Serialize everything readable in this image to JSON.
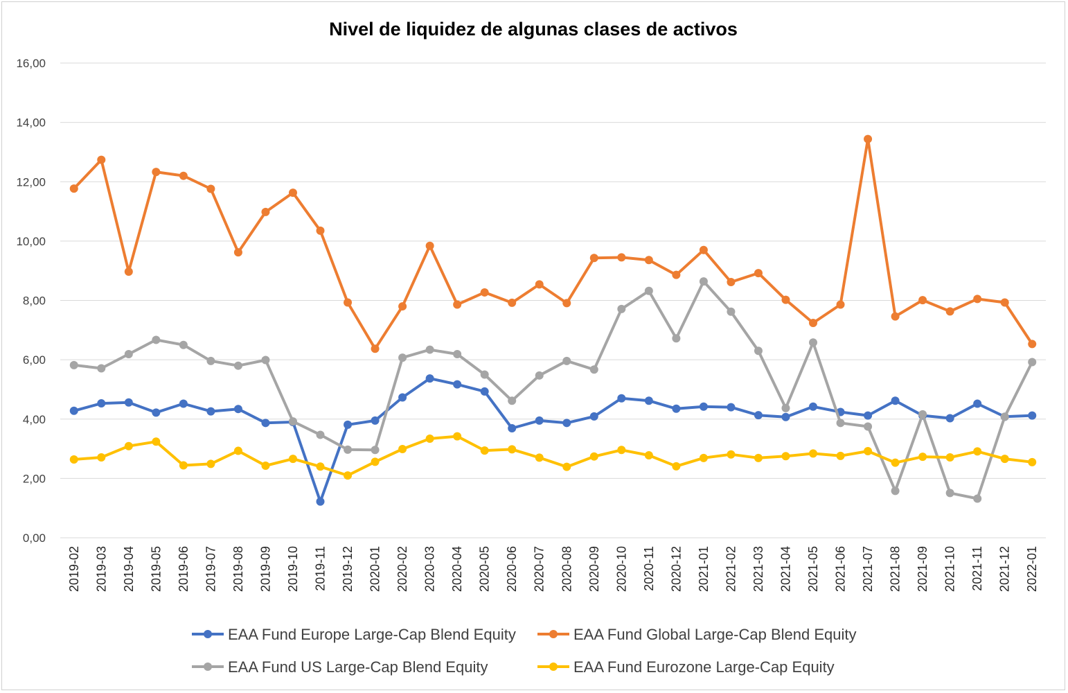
{
  "chart_data": {
    "type": "line",
    "title": "Nivel de liquidez de algunas clases de activos",
    "xlabel": "",
    "ylabel": "",
    "ylim": [
      0,
      16
    ],
    "yticks": [
      0,
      2,
      4,
      6,
      8,
      10,
      12,
      14,
      16
    ],
    "ytick_labels": [
      "0,00",
      "2,00",
      "4,00",
      "6,00",
      "8,00",
      "10,00",
      "12,00",
      "14,00",
      "16,00"
    ],
    "grid": true,
    "legend_position": "bottom",
    "categories": [
      "2019-02",
      "2019-03",
      "2019-04",
      "2019-05",
      "2019-06",
      "2019-07",
      "2019-08",
      "2019-09",
      "2019-10",
      "2019-11",
      "2019-12",
      "2020-01",
      "2020-02",
      "2020-03",
      "2020-04",
      "2020-05",
      "2020-06",
      "2020-07",
      "2020-08",
      "2020-09",
      "2020-10",
      "2020-11",
      "2020-12",
      "2021-01",
      "2021-02",
      "2021-03",
      "2021-04",
      "2021-05",
      "2021-06",
      "2021-07",
      "2021-08",
      "2021-09",
      "2021-10",
      "2021-11",
      "2021-12",
      "2022-01"
    ],
    "series": [
      {
        "name": "EAA Fund Europe Large-Cap Blend Equity",
        "color": "#4472c4",
        "values": [
          4.28,
          4.53,
          4.56,
          4.22,
          4.52,
          4.26,
          4.34,
          3.87,
          3.9,
          1.22,
          3.81,
          3.95,
          4.73,
          5.37,
          5.17,
          4.93,
          3.69,
          3.95,
          3.87,
          4.09,
          4.7,
          4.62,
          4.35,
          4.42,
          4.4,
          4.13,
          4.07,
          4.42,
          4.24,
          4.12,
          4.62,
          4.12,
          4.03,
          4.52,
          4.08,
          4.12
        ]
      },
      {
        "name": "EAA Fund Global Large-Cap Blend Equity",
        "color": "#ed7d31",
        "values": [
          11.77,
          12.74,
          8.97,
          12.33,
          12.2,
          11.76,
          9.62,
          10.98,
          11.63,
          10.35,
          7.93,
          6.37,
          7.8,
          9.84,
          7.86,
          8.27,
          7.92,
          8.54,
          7.91,
          9.43,
          9.45,
          9.36,
          8.86,
          9.7,
          8.62,
          8.92,
          8.02,
          7.24,
          7.86,
          13.44,
          7.46,
          8.01,
          7.63,
          8.05,
          7.93,
          6.53
        ]
      },
      {
        "name": "EAA Fund US Large-Cap Blend Equity",
        "color": "#a5a5a5",
        "values": [
          5.82,
          5.71,
          6.19,
          6.67,
          6.5,
          5.96,
          5.8,
          5.99,
          3.92,
          3.47,
          2.97,
          2.96,
          6.07,
          6.34,
          6.19,
          5.5,
          4.62,
          5.47,
          5.96,
          5.67,
          7.71,
          8.32,
          6.72,
          8.64,
          7.62,
          6.3,
          4.37,
          6.58,
          3.87,
          3.75,
          1.58,
          4.16,
          1.51,
          1.32,
          4.08,
          5.92
        ]
      },
      {
        "name": "EAA Fund Eurozone Large-Cap Equity",
        "color": "#ffc000",
        "values": [
          2.64,
          2.71,
          3.09,
          3.24,
          2.44,
          2.49,
          2.93,
          2.43,
          2.66,
          2.4,
          2.1,
          2.56,
          2.99,
          3.34,
          3.42,
          2.94,
          2.98,
          2.7,
          2.39,
          2.74,
          2.96,
          2.78,
          2.41,
          2.69,
          2.81,
          2.69,
          2.75,
          2.84,
          2.76,
          2.92,
          2.53,
          2.73,
          2.71,
          2.91,
          2.66,
          2.55
        ]
      }
    ]
  }
}
